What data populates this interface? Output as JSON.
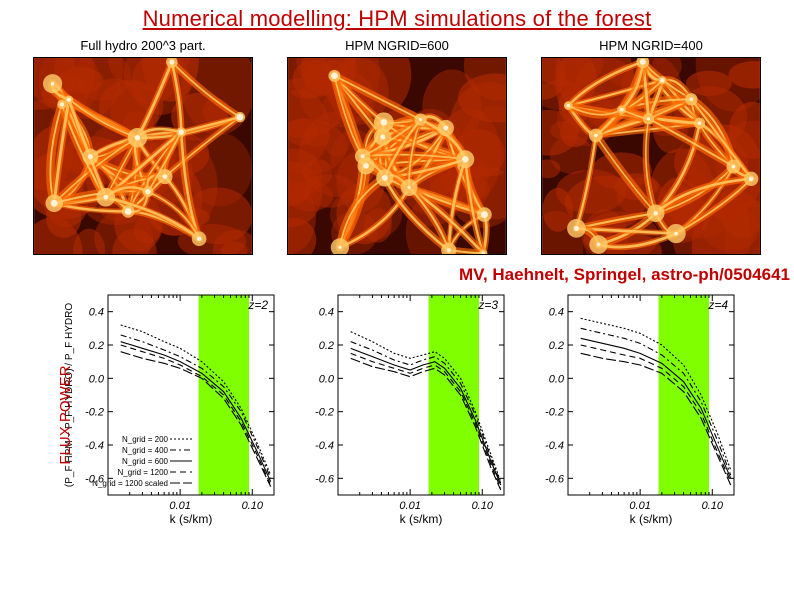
{
  "title": "Numerical modelling: HPM simulations of the forest",
  "title_color": "#c00000",
  "sim_panels": [
    {
      "label": "Full hydro  200^3 part."
    },
    {
      "label": "HPM   NGRID=600"
    },
    {
      "label": "HPM   NGRID=400"
    }
  ],
  "sim_colors": {
    "dark": "#3a0800",
    "mid": "#b32a00",
    "bright": "#ff6a00",
    "hot": "#ffcc66",
    "white": "#fff8e8"
  },
  "citation": "MV, Haehnelt, Springel, astro-ph/0504641",
  "citation_color": "#c00000",
  "yaxis_label": "FLUX POWER",
  "charts": [
    {
      "z_label": "z=2",
      "xlim_log": [
        0.001,
        0.2
      ],
      "ylim": [
        -0.7,
        0.5
      ],
      "yticks": [
        -0.6,
        -0.4,
        -0.2,
        0.0,
        0.2,
        0.4
      ],
      "xticks": [
        0.01,
        0.1
      ],
      "xtick_labels": [
        "0.01",
        "0.10"
      ],
      "xlabel": "k (s/km)",
      "ylabel": "(P_F HPM − P_F HYDRO) / P_F HYDRO",
      "band_x": [
        0.018,
        0.09
      ],
      "band_color": "#7fff00",
      "legend": [
        {
          "text": "N_grid = 200",
          "dash": "2,2"
        },
        {
          "text": "N_grid = 400",
          "dash": "6,3,2,3"
        },
        {
          "text": "N_grid = 600",
          "dash": ""
        },
        {
          "text": "N_grid = 1200",
          "dash": "6,4"
        },
        {
          "text": "N_grid = 1200 scaled",
          "dash": "10,3"
        }
      ],
      "curves": [
        {
          "dash": "2,2",
          "pts": [
            [
              0.0015,
              0.32
            ],
            [
              0.003,
              0.28
            ],
            [
              0.006,
              0.22
            ],
            [
              0.01,
              0.18
            ],
            [
              0.02,
              0.1
            ],
            [
              0.04,
              -0.02
            ],
            [
              0.07,
              -0.18
            ],
            [
              0.12,
              -0.4
            ],
            [
              0.18,
              -0.58
            ]
          ]
        },
        {
          "dash": "6,3,2,3",
          "pts": [
            [
              0.0015,
              0.26
            ],
            [
              0.003,
              0.22
            ],
            [
              0.006,
              0.17
            ],
            [
              0.01,
              0.13
            ],
            [
              0.02,
              0.06
            ],
            [
              0.04,
              -0.05
            ],
            [
              0.07,
              -0.2
            ],
            [
              0.12,
              -0.42
            ],
            [
              0.18,
              -0.6
            ]
          ]
        },
        {
          "dash": "",
          "pts": [
            [
              0.0015,
              0.22
            ],
            [
              0.003,
              0.18
            ],
            [
              0.006,
              0.14
            ],
            [
              0.01,
              0.1
            ],
            [
              0.02,
              0.03
            ],
            [
              0.04,
              -0.08
            ],
            [
              0.07,
              -0.24
            ],
            [
              0.12,
              -0.45
            ],
            [
              0.18,
              -0.62
            ]
          ]
        },
        {
          "dash": "6,4",
          "pts": [
            [
              0.0015,
              0.2
            ],
            [
              0.003,
              0.16
            ],
            [
              0.006,
              0.12
            ],
            [
              0.01,
              0.08
            ],
            [
              0.02,
              0.01
            ],
            [
              0.04,
              -0.1
            ],
            [
              0.07,
              -0.26
            ],
            [
              0.12,
              -0.47
            ],
            [
              0.18,
              -0.64
            ]
          ]
        },
        {
          "dash": "10,3",
          "pts": [
            [
              0.0015,
              0.16
            ],
            [
              0.003,
              0.12
            ],
            [
              0.006,
              0.09
            ],
            [
              0.01,
              0.06
            ],
            [
              0.02,
              0.0
            ],
            [
              0.04,
              -0.12
            ],
            [
              0.07,
              -0.28
            ],
            [
              0.12,
              -0.49
            ],
            [
              0.18,
              -0.65
            ]
          ]
        }
      ]
    },
    {
      "z_label": "z=3",
      "xlim_log": [
        0.001,
        0.2
      ],
      "ylim": [
        -0.7,
        0.5
      ],
      "yticks": [
        -0.6,
        -0.4,
        -0.2,
        0.0,
        0.2,
        0.4
      ],
      "xticks": [
        0.01,
        0.1
      ],
      "xtick_labels": [
        "0.01",
        "0.10"
      ],
      "xlabel": "k (s/km)",
      "band_x": [
        0.018,
        0.09
      ],
      "band_color": "#7fff00",
      "curves": [
        {
          "dash": "2,2",
          "pts": [
            [
              0.0015,
              0.28
            ],
            [
              0.003,
              0.22
            ],
            [
              0.006,
              0.15
            ],
            [
              0.01,
              0.12
            ],
            [
              0.015,
              0.14
            ],
            [
              0.022,
              0.16
            ],
            [
              0.03,
              0.12
            ],
            [
              0.05,
              0.0
            ],
            [
              0.08,
              -0.2
            ],
            [
              0.13,
              -0.45
            ],
            [
              0.18,
              -0.62
            ]
          ]
        },
        {
          "dash": "6,3,2,3",
          "pts": [
            [
              0.0015,
              0.22
            ],
            [
              0.003,
              0.17
            ],
            [
              0.006,
              0.11
            ],
            [
              0.01,
              0.08
            ],
            [
              0.015,
              0.11
            ],
            [
              0.022,
              0.13
            ],
            [
              0.03,
              0.09
            ],
            [
              0.05,
              -0.03
            ],
            [
              0.08,
              -0.22
            ],
            [
              0.13,
              -0.47
            ],
            [
              0.18,
              -0.63
            ]
          ]
        },
        {
          "dash": "",
          "pts": [
            [
              0.0015,
              0.18
            ],
            [
              0.003,
              0.13
            ],
            [
              0.006,
              0.08
            ],
            [
              0.01,
              0.05
            ],
            [
              0.015,
              0.08
            ],
            [
              0.022,
              0.1
            ],
            [
              0.03,
              0.06
            ],
            [
              0.05,
              -0.06
            ],
            [
              0.08,
              -0.25
            ],
            [
              0.13,
              -0.49
            ],
            [
              0.18,
              -0.64
            ]
          ]
        },
        {
          "dash": "6,4",
          "pts": [
            [
              0.0015,
              0.15
            ],
            [
              0.003,
              0.1
            ],
            [
              0.006,
              0.06
            ],
            [
              0.01,
              0.03
            ],
            [
              0.015,
              0.06
            ],
            [
              0.022,
              0.08
            ],
            [
              0.03,
              0.04
            ],
            [
              0.05,
              -0.08
            ],
            [
              0.08,
              -0.27
            ],
            [
              0.13,
              -0.51
            ],
            [
              0.18,
              -0.66
            ]
          ]
        },
        {
          "dash": "10,3",
          "pts": [
            [
              0.0015,
              0.12
            ],
            [
              0.003,
              0.07
            ],
            [
              0.006,
              0.04
            ],
            [
              0.01,
              0.01
            ],
            [
              0.015,
              0.04
            ],
            [
              0.022,
              0.06
            ],
            [
              0.03,
              0.02
            ],
            [
              0.05,
              -0.1
            ],
            [
              0.08,
              -0.29
            ],
            [
              0.13,
              -0.53
            ],
            [
              0.18,
              -0.67
            ]
          ]
        }
      ]
    },
    {
      "z_label": "z=4",
      "xlim_log": [
        0.001,
        0.2
      ],
      "ylim": [
        -0.7,
        0.5
      ],
      "yticks": [
        -0.6,
        -0.4,
        -0.2,
        0.0,
        0.2,
        0.4
      ],
      "xticks": [
        0.01,
        0.1
      ],
      "xtick_labels": [
        "0.01",
        "0.10"
      ],
      "xlabel": "k (s/km)",
      "band_x": [
        0.018,
        0.09
      ],
      "band_color": "#7fff00",
      "curves": [
        {
          "dash": "2,2",
          "pts": [
            [
              0.0015,
              0.36
            ],
            [
              0.003,
              0.33
            ],
            [
              0.006,
              0.3
            ],
            [
              0.01,
              0.27
            ],
            [
              0.02,
              0.2
            ],
            [
              0.04,
              0.08
            ],
            [
              0.07,
              -0.1
            ],
            [
              0.12,
              -0.34
            ],
            [
              0.18,
              -0.55
            ]
          ]
        },
        {
          "dash": "6,3,2,3",
          "pts": [
            [
              0.0015,
              0.3
            ],
            [
              0.003,
              0.27
            ],
            [
              0.006,
              0.24
            ],
            [
              0.01,
              0.21
            ],
            [
              0.02,
              0.14
            ],
            [
              0.04,
              0.03
            ],
            [
              0.07,
              -0.14
            ],
            [
              0.12,
              -0.38
            ],
            [
              0.18,
              -0.58
            ]
          ]
        },
        {
          "dash": "",
          "pts": [
            [
              0.0015,
              0.24
            ],
            [
              0.003,
              0.21
            ],
            [
              0.006,
              0.18
            ],
            [
              0.01,
              0.15
            ],
            [
              0.02,
              0.09
            ],
            [
              0.04,
              -0.02
            ],
            [
              0.07,
              -0.18
            ],
            [
              0.12,
              -0.42
            ],
            [
              0.18,
              -0.6
            ]
          ]
        },
        {
          "dash": "6,4",
          "pts": [
            [
              0.0015,
              0.2
            ],
            [
              0.003,
              0.17
            ],
            [
              0.006,
              0.14
            ],
            [
              0.01,
              0.12
            ],
            [
              0.02,
              0.06
            ],
            [
              0.04,
              -0.05
            ],
            [
              0.07,
              -0.21
            ],
            [
              0.12,
              -0.45
            ],
            [
              0.18,
              -0.62
            ]
          ]
        },
        {
          "dash": "10,3",
          "pts": [
            [
              0.0015,
              0.15
            ],
            [
              0.003,
              0.12
            ],
            [
              0.006,
              0.1
            ],
            [
              0.01,
              0.08
            ],
            [
              0.02,
              0.03
            ],
            [
              0.04,
              -0.08
            ],
            [
              0.07,
              -0.24
            ],
            [
              0.12,
              -0.47
            ],
            [
              0.18,
              -0.64
            ]
          ]
        }
      ]
    }
  ],
  "chart_style": {
    "line_color": "#000000",
    "axis_color": "#000000",
    "tick_fontsize": 11,
    "label_fontsize": 12,
    "band_opacity": 1.0
  }
}
